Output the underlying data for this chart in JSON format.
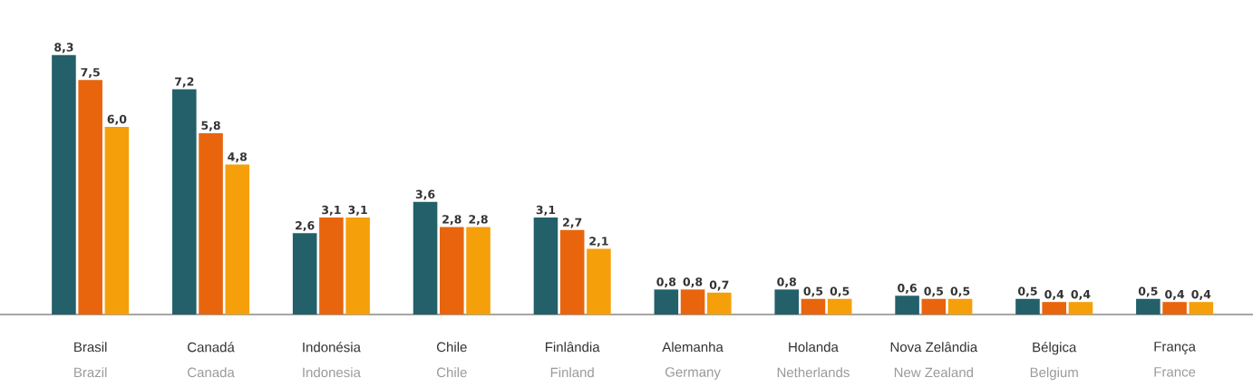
{
  "chart_data": {
    "type": "bar",
    "categories": [
      "Brasil",
      "Canadá",
      "Indonésia",
      "Chile",
      "Finlândia",
      "Alemanha",
      "Holanda",
      "Nova Zelândia",
      "Bélgica",
      "França"
    ],
    "annotations": [
      "Brazil",
      "Canada",
      "Indonesia",
      "Chile",
      "Finland",
      "Germany",
      "Netherlands",
      "New Zealand",
      "Belgium",
      "France"
    ],
    "series": [
      {
        "color": "#23606a",
        "values": [
          8.3,
          7.2,
          2.6,
          3.6,
          3.1,
          0.8,
          0.8,
          0.6,
          0.5,
          0.5
        ],
        "value_labels": [
          "8,3",
          "7,2",
          "2,6",
          "3,6",
          "3,1",
          "0,8",
          "0,8",
          "0,6",
          "0,5",
          "0,5"
        ]
      },
      {
        "color": "#e8650e",
        "values": [
          7.5,
          5.8,
          3.1,
          2.8,
          2.7,
          0.8,
          0.5,
          0.5,
          0.4,
          0.4
        ],
        "value_labels": [
          "7,5",
          "5,8",
          "3,1",
          "2,8",
          "2,7",
          "0,8",
          "0,5",
          "0,5",
          "0,4",
          "0,4"
        ]
      },
      {
        "color": "#f5a00a",
        "values": [
          6.0,
          4.8,
          3.1,
          2.8,
          2.1,
          0.7,
          0.5,
          0.5,
          0.4,
          0.4
        ],
        "value_labels": [
          "6,0",
          "4,8",
          "3,1",
          "2,8",
          "2,1",
          "0,7",
          "0,5",
          "0,5",
          "0,4",
          "0,4"
        ]
      }
    ]
  }
}
